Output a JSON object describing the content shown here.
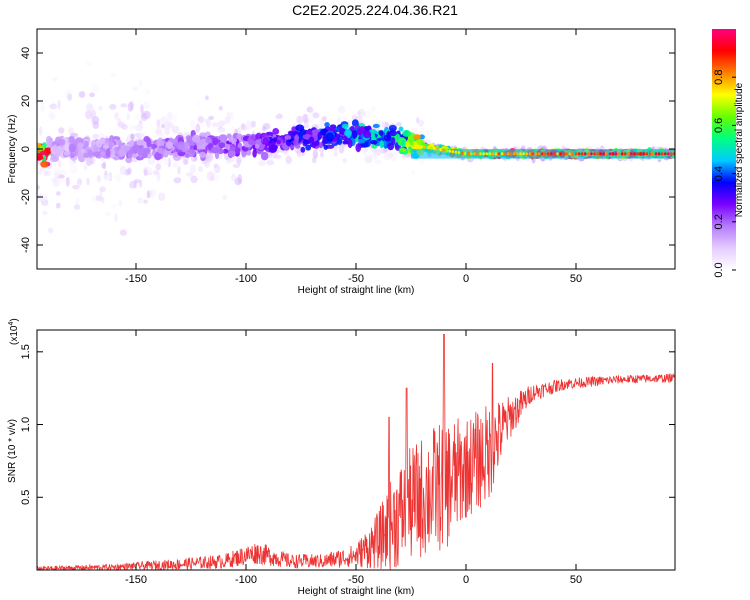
{
  "title": "C2E2.2025.224.04.36.R21",
  "chart_data": [
    {
      "type": "heatmap",
      "xlabel": "Height of straight line (km)",
      "ylabel": "Frequency (Hz)",
      "xlim": [
        -195,
        95
      ],
      "ylim": [
        -50,
        50
      ],
      "xticks": [
        -150,
        -100,
        -50,
        0,
        50
      ],
      "yticks": [
        -40,
        -20,
        0,
        20,
        40
      ],
      "colorbar": {
        "label": "Normalized spectral amplitude",
        "range": [
          0.0,
          1.0
        ],
        "ticks": [
          "0.0",
          "0.2",
          "0.4",
          "0.6",
          "0.8"
        ],
        "colors": [
          "#ffffff",
          "#e6ccff",
          "#b57cff",
          "#7a00ff",
          "#0000ff",
          "#00ccff",
          "#00ff80",
          "#66ff00",
          "#ffff00",
          "#ff8000",
          "#ff0000",
          "#ff0080"
        ]
      },
      "ridge": [
        {
          "x": -190,
          "y": 0,
          "amp": 0.15
        },
        {
          "x": -150,
          "y": 0,
          "amp": 0.18
        },
        {
          "x": -100,
          "y": 2,
          "amp": 0.25
        },
        {
          "x": -70,
          "y": 5,
          "amp": 0.35
        },
        {
          "x": -50,
          "y": 6,
          "amp": 0.45
        },
        {
          "x": -30,
          "y": 4,
          "amp": 0.55
        },
        {
          "x": -20,
          "y": 1,
          "amp": 0.75
        },
        {
          "x": 0,
          "y": -2,
          "amp": 0.8
        },
        {
          "x": 50,
          "y": -2,
          "amp": 0.9
        },
        {
          "x": 95,
          "y": -2,
          "amp": 0.95
        }
      ]
    },
    {
      "type": "line",
      "xlabel": "Height of straight line (km)",
      "ylabel": "SNR (10 * v/v)",
      "multiplier": "(x10",
      "multiplier_exp": "4",
      "multiplier_close": ")",
      "xlim": [
        -195,
        95
      ],
      "ylim": [
        0,
        1.65
      ],
      "xticks": [
        -150,
        -100,
        -50,
        0,
        50
      ],
      "yticks": [
        0.5,
        1.0,
        1.5
      ],
      "ytick_labels": [
        "0.5",
        "1.0",
        "1.5"
      ],
      "series": [
        {
          "color": "#ee3333",
          "envelope": [
            {
              "x": -195,
              "base": 0.01,
              "noise": 0.015
            },
            {
              "x": -160,
              "base": 0.02,
              "noise": 0.02
            },
            {
              "x": -130,
              "base": 0.04,
              "noise": 0.04
            },
            {
              "x": -110,
              "base": 0.06,
              "noise": 0.05
            },
            {
              "x": -95,
              "base": 0.12,
              "noise": 0.08
            },
            {
              "x": -80,
              "base": 0.06,
              "noise": 0.05
            },
            {
              "x": -65,
              "base": 0.06,
              "noise": 0.05
            },
            {
              "x": -50,
              "base": 0.1,
              "noise": 0.08
            },
            {
              "x": -40,
              "base": 0.2,
              "noise": 0.2
            },
            {
              "x": -32,
              "base": 0.35,
              "noise": 0.35
            },
            {
              "x": -25,
              "base": 0.45,
              "noise": 0.4
            },
            {
              "x": -15,
              "base": 0.55,
              "noise": 0.45
            },
            {
              "x": -8,
              "base": 0.6,
              "noise": 0.45
            },
            {
              "x": 0,
              "base": 0.7,
              "noise": 0.35
            },
            {
              "x": 10,
              "base": 0.8,
              "noise": 0.35
            },
            {
              "x": 20,
              "base": 1.05,
              "noise": 0.15
            },
            {
              "x": 30,
              "base": 1.22,
              "noise": 0.06
            },
            {
              "x": 45,
              "base": 1.28,
              "noise": 0.04
            },
            {
              "x": 70,
              "base": 1.31,
              "noise": 0.03
            },
            {
              "x": 95,
              "base": 1.32,
              "noise": 0.03
            }
          ],
          "peaks": [
            {
              "x": -10,
              "y": 1.62
            },
            {
              "x": 12,
              "y": 1.42
            },
            {
              "x": -35,
              "y": 1.05
            },
            {
              "x": -27,
              "y": 1.25
            }
          ]
        }
      ]
    }
  ]
}
